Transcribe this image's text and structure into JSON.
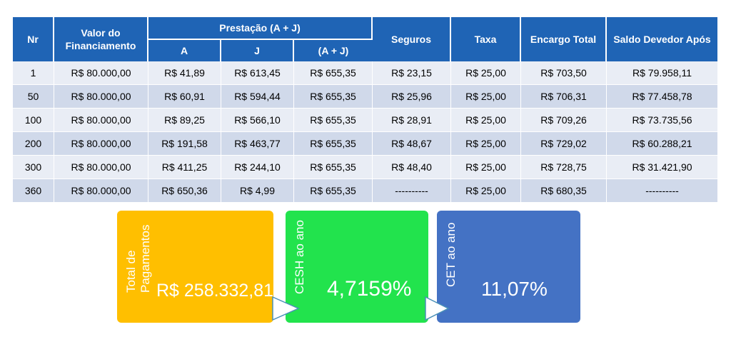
{
  "table": {
    "headers": {
      "nr": "Nr",
      "valor": "Valor do Financiamento",
      "prestacao": "Prestação (A + J)",
      "a": "A",
      "j": "J",
      "aj": "(A + J)",
      "seguros": "Seguros",
      "taxa": "Taxa",
      "encargo": "Encargo Total",
      "saldo": "Saldo Devedor Após"
    },
    "rows": [
      [
        "1",
        "R$ 80.000,00",
        "R$ 41,89",
        "R$ 613,45",
        "R$ 655,35",
        "R$ 23,15",
        "R$ 25,00",
        "R$ 703,50",
        "R$ 79.958,11"
      ],
      [
        "50",
        "R$ 80.000,00",
        "R$ 60,91",
        "R$ 594,44",
        "R$ 655,35",
        "R$ 25,96",
        "R$ 25,00",
        "R$ 706,31",
        "R$ 77.458,78"
      ],
      [
        "100",
        "R$ 80.000,00",
        "R$ 89,25",
        "R$ 566,10",
        "R$ 655,35",
        "R$ 28,91",
        "R$ 25,00",
        "R$ 709,26",
        "R$ 73.735,56"
      ],
      [
        "200",
        "R$ 80.000,00",
        "R$ 191,58",
        "R$ 463,77",
        "R$ 655,35",
        "R$ 48,67",
        "R$ 25,00",
        "R$ 729,02",
        "R$ 60.288,21"
      ],
      [
        "300",
        "R$ 80.000,00",
        "R$ 411,25",
        "R$ 244,10",
        "R$ 655,35",
        "R$ 48,40",
        "R$ 25,00",
        "R$ 728,75",
        "R$ 31.421,90"
      ],
      [
        "360",
        "R$ 80.000,00",
        "R$ 650,36",
        "R$ 4,99",
        "R$ 655,35",
        "----------",
        "R$ 25,00",
        "R$ 680,35",
        "----------"
      ]
    ]
  },
  "cards": {
    "total": {
      "label": "Total de Pagamentos",
      "value": "R$ 258.332,81",
      "color": "#ffbf00"
    },
    "cesh": {
      "label": "CESH ao ano",
      "value": "4,7159%",
      "color": "#22e34d"
    },
    "cet": {
      "label": "CET ao ano",
      "value": "11,07%",
      "color": "#4472c4"
    }
  },
  "colors": {
    "header": "#1f64b5",
    "row_light": "#e9edf5",
    "row_dark": "#d0d9ea"
  },
  "icons": {
    "arrow1": "triangle-right-icon",
    "arrow2": "triangle-right-icon"
  }
}
